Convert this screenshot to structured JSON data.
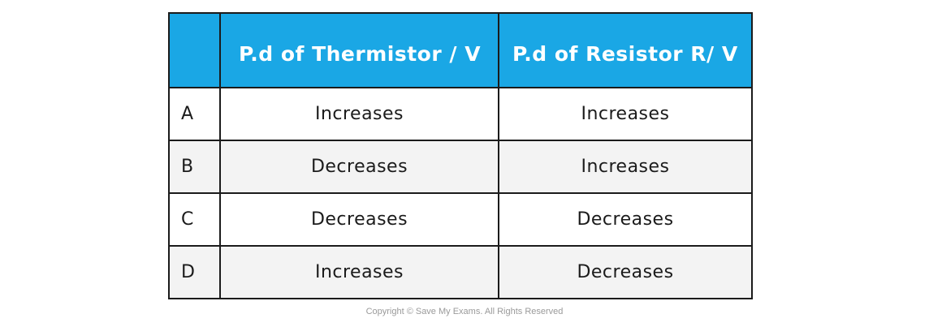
{
  "table": {
    "headers": [
      "",
      "P.d of Thermistor / V",
      "P.d of Resistor R/ V"
    ],
    "rows": [
      {
        "label": "A",
        "thermistor": "Increases",
        "resistor": "Increases"
      },
      {
        "label": "B",
        "thermistor": "Decreases",
        "resistor": "Increases"
      },
      {
        "label": "C",
        "thermistor": "Decreases",
        "resistor": "Decreases"
      },
      {
        "label": "D",
        "thermistor": "Increases",
        "resistor": "Decreases"
      }
    ]
  },
  "footer": {
    "copyright": "Copyright © Save My Exams. All Rights Reserved"
  },
  "colors": {
    "header_bg": "#1aa7e5",
    "header_text": "#ffffff",
    "border": "#1b1b1b",
    "shaded_row": "#f3f3f3"
  }
}
